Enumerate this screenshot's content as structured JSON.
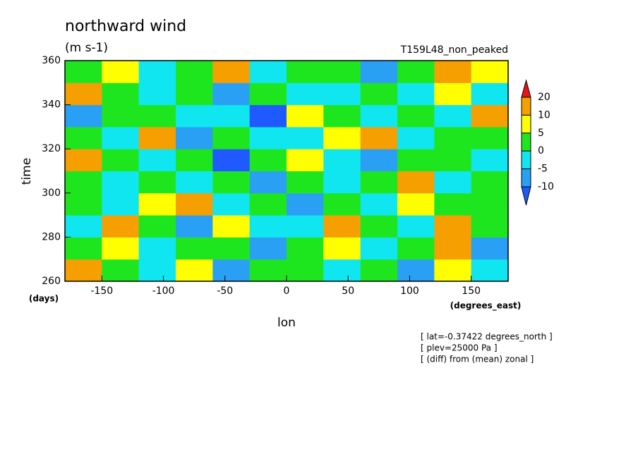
{
  "chart_data": {
    "type": "contour",
    "title": "northward wind",
    "subtitle": "(m s-1)",
    "run_label": "T159L48_non_peaked",
    "y_label": "time",
    "y_unit": "(days)",
    "x_label": "lon",
    "x_unit": "(degrees_east)",
    "notes": [
      "[ lat=-0.37422 degrees_north ]",
      "[ plev=25000 Pa ]",
      "[ (diff) from (mean) zonal ]"
    ],
    "xlim": [
      -180,
      180
    ],
    "xticks": [
      -150,
      -100,
      -50,
      0,
      50,
      100,
      150
    ],
    "ylim": [
      260,
      360
    ],
    "yticks": [
      260,
      280,
      300,
      320,
      340,
      360
    ],
    "x": [
      -165,
      -135,
      -105,
      -75,
      -45,
      -15,
      15,
      45,
      75,
      105,
      135,
      165
    ],
    "y": [
      265,
      275,
      285,
      295,
      305,
      315,
      325,
      335,
      345,
      355
    ],
    "z": [
      [
        12,
        3,
        -2,
        6,
        -8,
        1,
        4,
        -3,
        2,
        -6,
        8,
        -4
      ],
      [
        2,
        6,
        -4,
        1,
        3,
        -6,
        2,
        5,
        -2,
        1,
        11,
        -8
      ],
      [
        -3,
        14,
        2,
        -6,
        7,
        -1,
        -4,
        12,
        3,
        -2,
        14,
        1
      ],
      [
        4,
        -2,
        5,
        13,
        -3,
        2,
        -7,
        3,
        -1,
        8,
        0,
        3
      ],
      [
        1,
        -4,
        3,
        -2,
        2,
        -8,
        3,
        -4,
        1,
        16,
        -3,
        2
      ],
      [
        13,
        2,
        -5,
        4,
        -12,
        1,
        5,
        -2,
        -6,
        3,
        1,
        -4
      ],
      [
        2,
        -3,
        15,
        -6,
        3,
        -2,
        -4,
        6,
        12,
        -3,
        4,
        1
      ],
      [
        -6,
        3,
        2,
        -4,
        -3,
        -12,
        8,
        1,
        -5,
        2,
        -4,
        12
      ],
      [
        18,
        1,
        -2,
        4,
        -6,
        2,
        -3,
        -1,
        3,
        -4,
        9,
        -2
      ],
      [
        3,
        5,
        -3,
        1,
        16,
        -2,
        4,
        3,
        -6,
        1,
        12,
        5
      ]
    ],
    "levels": [
      -10,
      -5,
      0,
      5,
      10,
      20
    ],
    "colors": [
      "#1e5aff",
      "#2aa0f5",
      "#10e6f0",
      "#1ee61e",
      "#ffff00",
      "#f5a000",
      "#e81418"
    ]
  }
}
